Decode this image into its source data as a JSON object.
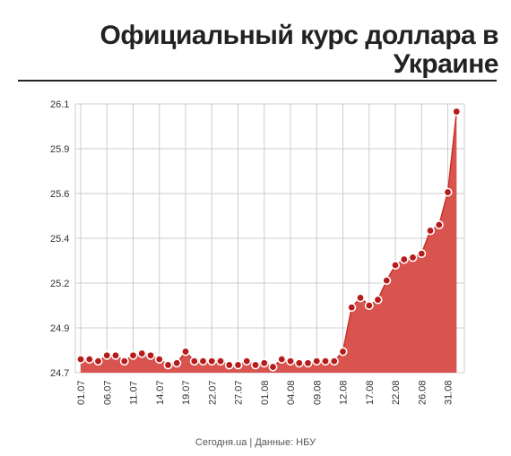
{
  "title": "Официальный курс доллара в Украине",
  "source": "Сегодня.ua | Данные: НБУ",
  "colors": {
    "area": "#d9534f",
    "line": "#c9302c",
    "marker": "#b71c1c",
    "grid": "#cccccc",
    "text": "#333333"
  },
  "chart_data": {
    "type": "area",
    "title": "Официальный курс доллара в Украине",
    "xlabel": "",
    "ylabel": "",
    "ylim": [
      24.7,
      26.1
    ],
    "ytick_labels": [
      "24.7",
      "24.9",
      "25.2",
      "25.4",
      "25.6",
      "25.9",
      "26.1"
    ],
    "xtick_labels": [
      "01.07",
      "06.07",
      "11.07",
      "14.07",
      "19.07",
      "22.07",
      "27.07",
      "01.08",
      "04.08",
      "09.08",
      "12.08",
      "17.08",
      "22.08",
      "26.08",
      "31.08"
    ],
    "grid": true,
    "values": [
      24.77,
      24.77,
      24.76,
      24.79,
      24.79,
      24.76,
      24.79,
      24.8,
      24.79,
      24.77,
      24.74,
      24.75,
      24.81,
      24.76,
      24.76,
      24.76,
      24.76,
      24.74,
      24.74,
      24.76,
      24.74,
      24.75,
      24.73,
      24.77,
      24.76,
      24.75,
      24.75,
      24.76,
      24.76,
      24.76,
      24.81,
      25.04,
      25.09,
      25.05,
      25.08,
      25.18,
      25.26,
      25.29,
      25.3,
      25.32,
      25.44,
      25.47,
      25.64,
      26.06
    ]
  }
}
